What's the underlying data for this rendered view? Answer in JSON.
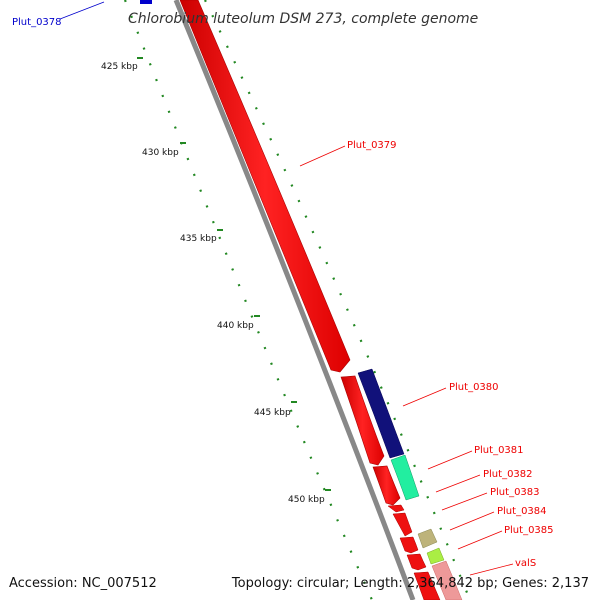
{
  "map": {
    "title": "Chlorobium luteolum DSM 273, complete genome",
    "accession_text": "Accession: NC_007512",
    "summary_text": "Topology: circular; Length: 2,364,842 bp; Genes: 2,137"
  },
  "ticks": [
    {
      "label": "425 kbp"
    },
    {
      "label": "430 kbp"
    },
    {
      "label": "435 kbp"
    },
    {
      "label": "440 kbp"
    },
    {
      "label": "445 kbp"
    },
    {
      "label": "450 kbp"
    }
  ],
  "genes": [
    {
      "name": "Plut_0378",
      "color": "#0000cc"
    },
    {
      "name": "Plut_0379",
      "color": "#ee0000"
    },
    {
      "name": "Plut_0380",
      "color": "#ee0000"
    },
    {
      "name": "Plut_0381",
      "color": "#ee0000"
    },
    {
      "name": "Plut_0382",
      "color": "#ee0000"
    },
    {
      "name": "Plut_0383",
      "color": "#ee0000"
    },
    {
      "name": "Plut_0384",
      "color": "#ee0000"
    },
    {
      "name": "Plut_0385",
      "color": "#ee0000"
    },
    {
      "name": "valS",
      "color": "#ee0000"
    }
  ],
  "colors": {
    "forward_strand": "#ee1111",
    "backbone": "#888888",
    "cog_navy": "#11117a",
    "cog_teal": "#22eea0",
    "cog_khaki": "#bdb37a",
    "cog_lime": "#aaee44",
    "cog_pink": "#ee9999",
    "tick_green": "#228822"
  }
}
